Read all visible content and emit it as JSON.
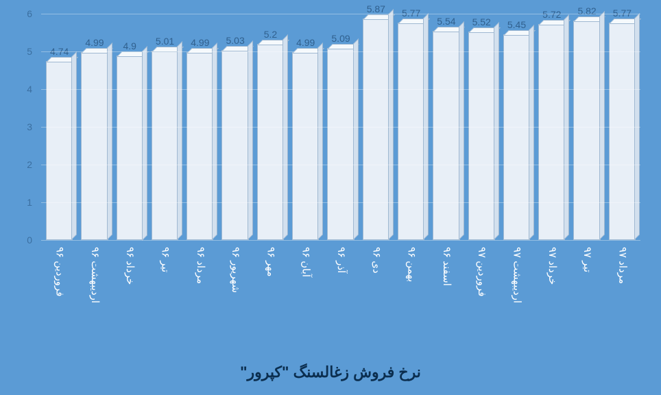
{
  "chart": {
    "type": "bar",
    "title": "نرخ فروش زغالسنگ \"کپرور\"",
    "title_color": "#0b2e4f",
    "title_fontsize": 22,
    "background_color": "#5b9bd5",
    "bar_color": "#e8eff7",
    "bar_top_color": "#f5f9fc",
    "bar_side_color": "#d3e0ee",
    "bar_border_color": "#9fb8d1",
    "grid_color": "rgba(255,255,255,0.35)",
    "axis_label_color": "#3b6fa0",
    "value_label_color": "#30608e",
    "x_label_color": "#ffffff",
    "label_fontsize": 14,
    "x_label_fontsize": 15,
    "ylim": [
      0,
      6
    ],
    "ytick_step": 1,
    "yticks": [
      "0",
      "1",
      "2",
      "3",
      "4",
      "5",
      "6"
    ],
    "categories": [
      "فروردین ۹۶",
      "اردیبهشت ۹۶",
      "خرداد ۹۶",
      "تیر ۹۶",
      "مرداد ۹۶",
      "شهریور ۹۶",
      "مهر ۹۶",
      "آبان ۹۶",
      "آذر ۹۶",
      "دی ۹۶",
      "بهمن ۹۶",
      "اسفند ۹۶",
      "فروردین ۹۷",
      "اردیبهشت ۹۷",
      "خرداد ۹۷",
      "تیر ۹۷",
      "مرداد ۹۷"
    ],
    "values": [
      4.74,
      4.99,
      4.9,
      5.01,
      4.99,
      5.03,
      5.2,
      4.99,
      5.09,
      5.87,
      5.77,
      5.54,
      5.52,
      5.45,
      5.72,
      5.82,
      5.77
    ],
    "value_labels": [
      "4.74",
      "4.99",
      "4.9",
      "5.01",
      "4.99",
      "5.03",
      "5.2",
      "4.99",
      "5.09",
      "5.87",
      "5.77",
      "5.54",
      "5.52",
      "5.45",
      "5.72",
      "5.82",
      "5.77"
    ],
    "bar_width": 0.78,
    "aspect_width": 964,
    "aspect_height": 576
  }
}
